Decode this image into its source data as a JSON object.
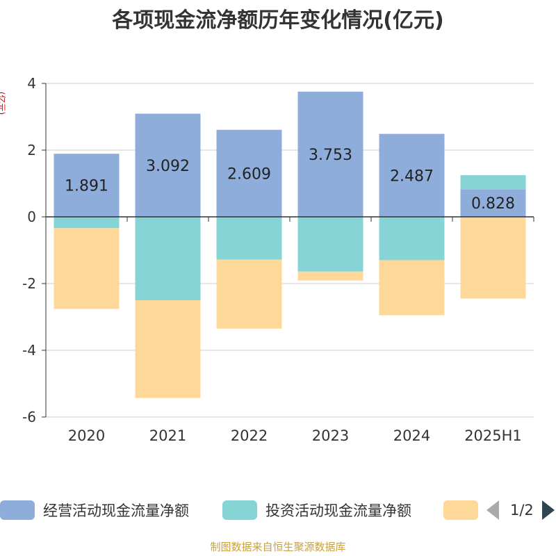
{
  "chart_data": {
    "type": "bar",
    "stacked": true,
    "title": "各项现金流净额历年变化情况(亿元)",
    "ylabel": "(亿元)",
    "categories": [
      "2020",
      "2021",
      "2022",
      "2023",
      "2024",
      "2025H1"
    ],
    "ylim": [
      -6,
      4
    ],
    "yticks": [
      4,
      2,
      0,
      -2,
      -4,
      -6
    ],
    "grid": true,
    "series": [
      {
        "name": "经营活动现金流量净额",
        "color": "#8eaddb",
        "values": [
          1.891,
          3.092,
          2.609,
          3.753,
          2.487,
          0.828
        ],
        "labels": [
          "1.891",
          "3.092",
          "2.609",
          "3.753",
          "2.487",
          "0.828"
        ]
      },
      {
        "name": "投资活动现金流量净额",
        "color": "#87d4d6",
        "values": [
          -0.34,
          -2.5,
          -1.28,
          -1.64,
          -1.3,
          0.42
        ]
      },
      {
        "name": "",
        "color": "#fdd898",
        "values": [
          -2.42,
          -2.93,
          -2.07,
          -0.27,
          -1.65,
          -2.45
        ]
      }
    ],
    "legend_position": "bottom"
  },
  "legend": {
    "items": [
      "经营活动现金流量净额",
      "投资活动现金流量净额",
      ""
    ],
    "page": "1/2"
  },
  "source": "制图数据来自恒生聚源数据库"
}
